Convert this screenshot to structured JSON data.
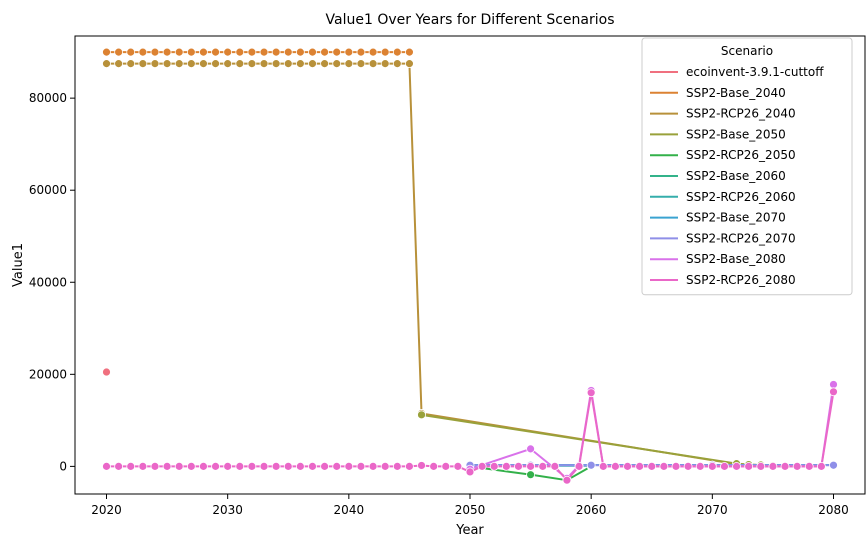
{
  "chart_data": {
    "type": "line",
    "title": "Value1 Over Years for Different Scenarios",
    "xlabel": "Year",
    "ylabel": "Value1",
    "xlim": [
      2017.4,
      2082.6
    ],
    "ylim": [
      -6000,
      93500
    ],
    "xticks": [
      2020,
      2030,
      2040,
      2050,
      2060,
      2070,
      2080
    ],
    "yticks": [
      0,
      20000,
      40000,
      60000,
      80000
    ],
    "grid": false,
    "legend": {
      "title": "Scenario",
      "placement": "top-right"
    },
    "series": [
      {
        "name": "ecoinvent-3.9.1-cuttoff",
        "color": "#f0707f",
        "points": [
          [
            2020,
            20500
          ]
        ]
      },
      {
        "name": "SSP2-Base_2040",
        "color": "#dc8232",
        "points": [
          [
            2020,
            90000
          ],
          [
            2021,
            90000
          ],
          [
            2022,
            90000
          ],
          [
            2023,
            90000
          ],
          [
            2024,
            90000
          ],
          [
            2025,
            90000
          ],
          [
            2026,
            90000
          ],
          [
            2027,
            90000
          ],
          [
            2028,
            90000
          ],
          [
            2029,
            90000
          ],
          [
            2030,
            90000
          ],
          [
            2031,
            90000
          ],
          [
            2032,
            90000
          ],
          [
            2033,
            90000
          ],
          [
            2034,
            90000
          ],
          [
            2035,
            90000
          ],
          [
            2036,
            90000
          ],
          [
            2037,
            90000
          ],
          [
            2038,
            90000
          ],
          [
            2039,
            90000
          ],
          [
            2040,
            90000
          ],
          [
            2041,
            90000
          ],
          [
            2042,
            90000
          ],
          [
            2043,
            90000
          ],
          [
            2044,
            90000
          ],
          [
            2045,
            90000
          ]
        ]
      },
      {
        "name": "SSP2-RCP26_2040",
        "color": "#b8913a",
        "points": [
          [
            2020,
            87500
          ],
          [
            2021,
            87500
          ],
          [
            2022,
            87500
          ],
          [
            2023,
            87500
          ],
          [
            2024,
            87500
          ],
          [
            2025,
            87500
          ],
          [
            2026,
            87500
          ],
          [
            2027,
            87500
          ],
          [
            2028,
            87500
          ],
          [
            2029,
            87500
          ],
          [
            2030,
            87500
          ],
          [
            2031,
            87500
          ],
          [
            2032,
            87500
          ],
          [
            2033,
            87500
          ],
          [
            2034,
            87500
          ],
          [
            2035,
            87500
          ],
          [
            2036,
            87500
          ],
          [
            2037,
            87500
          ],
          [
            2038,
            87500
          ],
          [
            2039,
            87500
          ],
          [
            2040,
            87500
          ],
          [
            2041,
            87500
          ],
          [
            2042,
            87500
          ],
          [
            2043,
            87500
          ],
          [
            2044,
            87500
          ],
          [
            2045,
            87500
          ],
          [
            2046,
            11500
          ],
          [
            2072,
            500
          ],
          [
            2073,
            300
          ],
          [
            2074,
            200
          ],
          [
            2075,
            150
          ],
          [
            2076,
            100
          ],
          [
            2077,
            100
          ],
          [
            2078,
            100
          ],
          [
            2079,
            100
          ]
        ]
      },
      {
        "name": "SSP2-Base_2050",
        "color": "#99a13a",
        "points": [
          [
            2046,
            11200
          ],
          [
            2072,
            600
          ],
          [
            2073,
            400
          ],
          [
            2074,
            300
          ]
        ]
      },
      {
        "name": "SSP2-RCP26_2050",
        "color": "#33b14a",
        "points": [
          [
            2050,
            0
          ],
          [
            2055,
            -1800
          ],
          [
            2058,
            -3000
          ],
          [
            2060,
            0
          ]
        ]
      },
      {
        "name": "SSP2-Base_2060",
        "color": "#33b38a",
        "points": [
          [
            2050,
            200
          ],
          [
            2055,
            200
          ],
          [
            2060,
            200
          ]
        ]
      },
      {
        "name": "SSP2-RCP26_2060",
        "color": "#35aeab",
        "points": [
          [
            2050,
            150
          ],
          [
            2055,
            150
          ],
          [
            2060,
            150
          ]
        ]
      },
      {
        "name": "SSP2-Base_2070",
        "color": "#3aa3d1",
        "points": [
          [
            2050,
            300
          ],
          [
            2055,
            300
          ],
          [
            2060,
            300
          ],
          [
            2070,
            300
          ],
          [
            2080,
            300
          ]
        ]
      },
      {
        "name": "SSP2-RCP26_2070",
        "color": "#8f8fe8",
        "points": [
          [
            2050,
            250
          ],
          [
            2055,
            250
          ],
          [
            2060,
            250
          ],
          [
            2070,
            250
          ],
          [
            2080,
            250
          ]
        ]
      },
      {
        "name": "SSP2-Base_2080",
        "color": "#d972ea",
        "points": [
          [
            2050,
            -600
          ],
          [
            2055,
            3800
          ],
          [
            2058,
            -2600
          ],
          [
            2059,
            200
          ],
          [
            2060,
            16500
          ],
          [
            2061,
            0
          ],
          [
            2079,
            0
          ],
          [
            2080,
            17800
          ]
        ]
      },
      {
        "name": "SSP2-RCP26_2080",
        "color": "#ea67c8",
        "points": [
          [
            2020,
            0
          ],
          [
            2021,
            0
          ],
          [
            2022,
            0
          ],
          [
            2023,
            0
          ],
          [
            2024,
            0
          ],
          [
            2025,
            0
          ],
          [
            2026,
            0
          ],
          [
            2027,
            0
          ],
          [
            2028,
            0
          ],
          [
            2029,
            0
          ],
          [
            2030,
            0
          ],
          [
            2031,
            0
          ],
          [
            2032,
            0
          ],
          [
            2033,
            0
          ],
          [
            2034,
            0
          ],
          [
            2035,
            0
          ],
          [
            2036,
            0
          ],
          [
            2037,
            0
          ],
          [
            2038,
            0
          ],
          [
            2039,
            0
          ],
          [
            2040,
            0
          ],
          [
            2041,
            0
          ],
          [
            2042,
            0
          ],
          [
            2043,
            0
          ],
          [
            2044,
            0
          ],
          [
            2045,
            0
          ],
          [
            2046,
            200
          ],
          [
            2047,
            0
          ],
          [
            2048,
            0
          ],
          [
            2049,
            0
          ],
          [
            2050,
            -1200
          ],
          [
            2051,
            0
          ],
          [
            2052,
            0
          ],
          [
            2053,
            0
          ],
          [
            2054,
            0
          ],
          [
            2055,
            0
          ],
          [
            2056,
            0
          ],
          [
            2057,
            0
          ],
          [
            2058,
            -3000
          ],
          [
            2059,
            0
          ],
          [
            2060,
            16000
          ],
          [
            2061,
            0
          ],
          [
            2062,
            0
          ],
          [
            2063,
            0
          ],
          [
            2064,
            0
          ],
          [
            2065,
            0
          ],
          [
            2066,
            0
          ],
          [
            2067,
            0
          ],
          [
            2068,
            0
          ],
          [
            2069,
            0
          ],
          [
            2070,
            0
          ],
          [
            2071,
            0
          ],
          [
            2072,
            0
          ],
          [
            2073,
            0
          ],
          [
            2074,
            0
          ],
          [
            2075,
            0
          ],
          [
            2076,
            0
          ],
          [
            2077,
            0
          ],
          [
            2078,
            0
          ],
          [
            2079,
            0
          ],
          [
            2080,
            16200
          ]
        ]
      }
    ]
  }
}
